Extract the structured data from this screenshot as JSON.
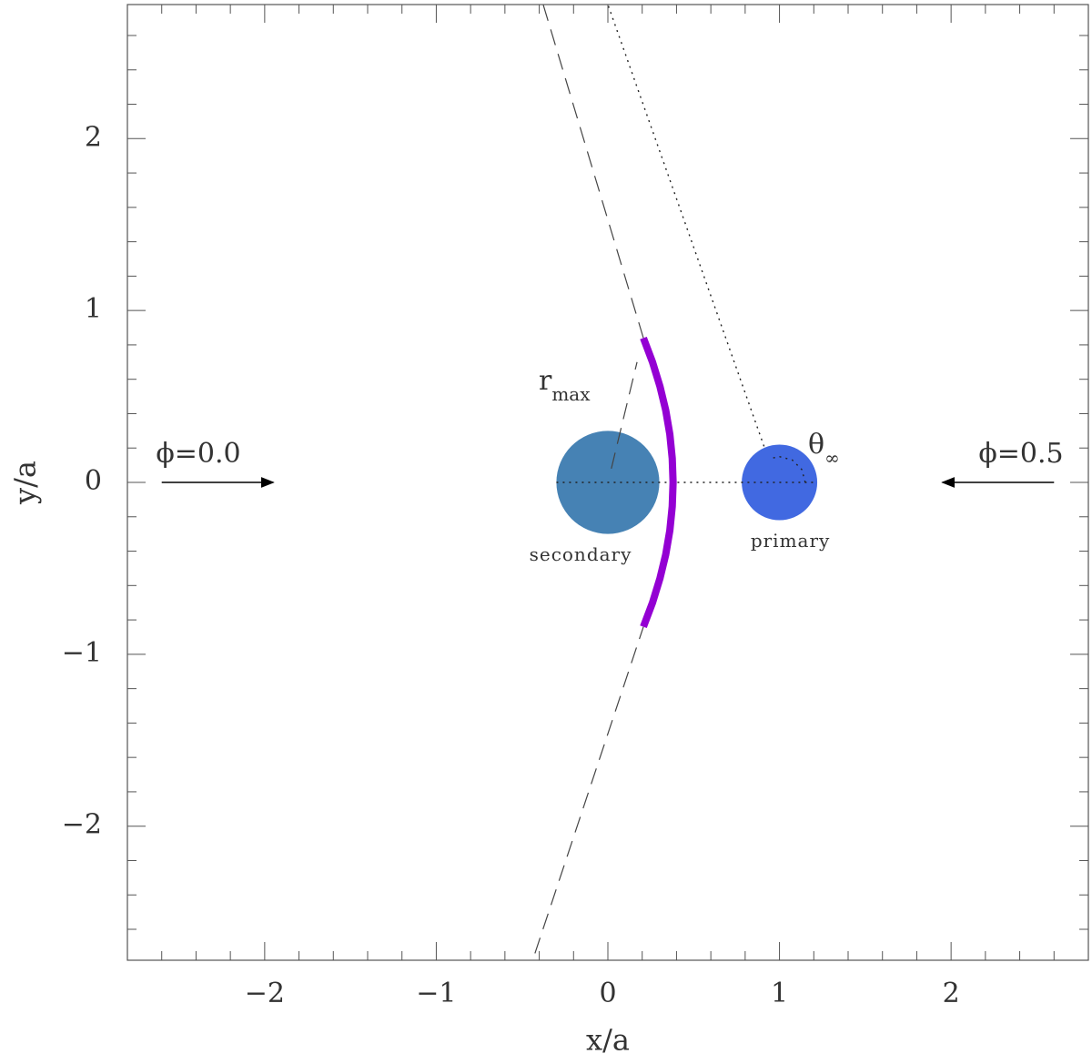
{
  "chart_data": {
    "type": "diagram",
    "xlabel": "x/a",
    "ylabel": "y/a",
    "xlim": [
      -2.8,
      2.8
    ],
    "ylim": [
      -2.78,
      2.78
    ],
    "xticks": [
      {
        "value": -2,
        "label": "−2"
      },
      {
        "value": -1,
        "label": "−1"
      },
      0,
      1,
      2
    ],
    "yticks": [
      {
        "value": -2,
        "label": "−2"
      },
      {
        "value": -1,
        "label": "−1"
      },
      0,
      1,
      2
    ],
    "minorticks": [
      -2.6,
      -2.4,
      -2.2,
      -1.8,
      -1.6,
      -1.4,
      -1.2,
      -0.8,
      -0.6,
      -0.4,
      -0.2,
      0.2,
      0.4,
      0.6,
      0.8,
      1.2,
      1.4,
      1.6,
      1.8,
      2.2,
      2.4,
      2.6
    ],
    "bodies": [
      {
        "name": "secondary",
        "x": 0,
        "y": 0,
        "r": 0.3,
        "color": "#4682b4"
      },
      {
        "name": "primary",
        "x": 1,
        "y": 0,
        "r": 0.22,
        "color": "#4169e1"
      }
    ],
    "shock": {
      "color": "#9400d3",
      "x": [
        0.207,
        0.26,
        0.303,
        0.337,
        0.361,
        0.375,
        0.38,
        0.375,
        0.361,
        0.337,
        0.303,
        0.26,
        0.207
      ],
      "y": [
        0.84,
        0.7,
        0.56,
        0.42,
        0.28,
        0.14,
        0,
        -0.14,
        -0.28,
        -0.42,
        -0.56,
        -0.7,
        -0.84
      ]
    },
    "lines": [
      {
        "style": "dashed",
        "x": [
          -0.425,
          0.207
        ],
        "y": [
          -2.74,
          -0.84
        ]
      },
      {
        "style": "dashed",
        "x": [
          0.207,
          -0.377
        ],
        "y": [
          0.84,
          2.78
        ]
      },
      {
        "style": "dashed",
        "x": [
          0.02,
          0.17
        ],
        "y": [
          0.08,
          0.7
        ]
      },
      {
        "style": "dotted",
        "x": [
          0.91,
          0
        ],
        "y": [
          0.21,
          2.78
        ]
      },
      {
        "style": "dotted",
        "x": [
          -0.3,
          1.2
        ],
        "y": [
          0,
          0
        ]
      },
      {
        "style": "dotted",
        "x": [
          1.15,
          1.13,
          1.075,
          1.0,
          0.95
        ],
        "y": [
          0,
          0.075,
          0.13,
          0.15,
          0.14
        ]
      }
    ],
    "arrows": [
      {
        "label": "ϕ=0.0",
        "x": [
          -2.6,
          -1.95
        ],
        "y": [
          0,
          0
        ]
      },
      {
        "label": "ϕ=0.5",
        "x": [
          2.6,
          1.95
        ],
        "y": [
          0,
          0
        ]
      }
    ],
    "r_label": {
      "main": "r",
      "sub": "max"
    },
    "theta_label": {
      "main": "θ",
      "sub": "∞"
    }
  }
}
